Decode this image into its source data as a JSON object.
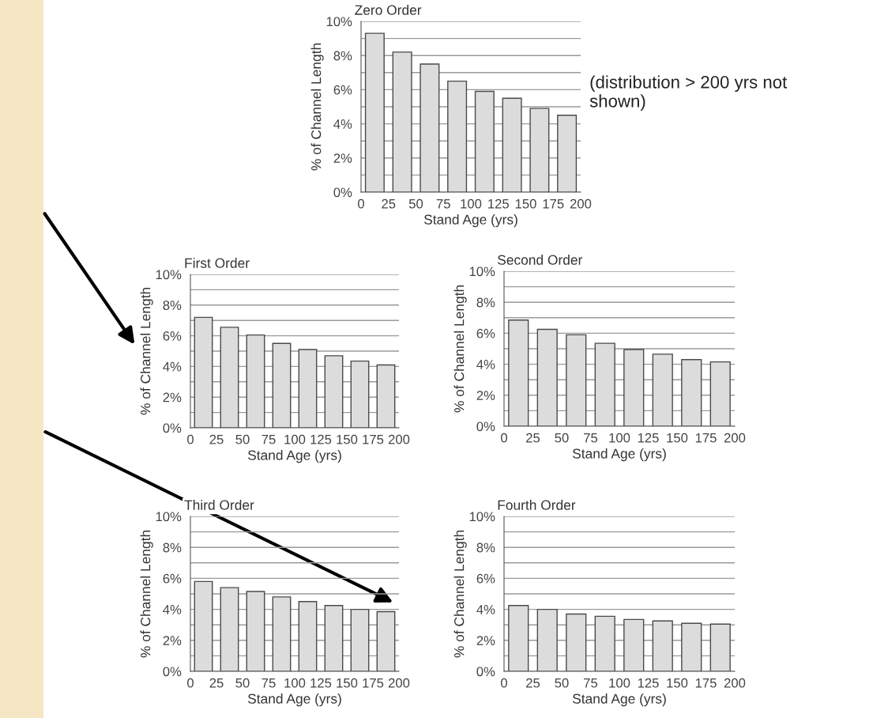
{
  "chart_data": [
    {
      "type": "bar",
      "title": "Zero Order",
      "xlabel": "Stand Age (yrs)",
      "ylabel": "% of Channel Length",
      "x": [
        12.5,
        37.5,
        62.5,
        87.5,
        112.5,
        137.5,
        162.5,
        187.5
      ],
      "values": [
        9.3,
        8.2,
        7.5,
        6.5,
        5.9,
        5.5,
        4.9,
        4.5
      ],
      "color": "#dcdcdc",
      "xlim": [
        0,
        200
      ],
      "xticks": [
        0,
        25,
        50,
        75,
        100,
        125,
        150,
        175,
        200
      ],
      "ylim": [
        0,
        10
      ],
      "yticks": [
        {
          "value": 0,
          "label": "0%"
        },
        {
          "value": 1,
          "label": null
        },
        {
          "value": 2,
          "label": "2%"
        },
        {
          "value": 3,
          "label": null
        },
        {
          "value": 4,
          "label": "4%"
        },
        {
          "value": 5,
          "label": null
        },
        {
          "value": 6,
          "label": "6%"
        },
        {
          "value": 7,
          "label": null
        },
        {
          "value": 8,
          "label": "8%"
        },
        {
          "value": 9,
          "label": null
        },
        {
          "value": 10,
          "label": "10%"
        }
      ],
      "grid": "y",
      "annotations": [
        "(distribution > 200 yrs not shown)"
      ]
    },
    {
      "type": "bar",
      "title": "First Order",
      "xlabel": "Stand Age (yrs)",
      "ylabel": "% of Channel Length",
      "x": [
        12.5,
        37.5,
        62.5,
        87.5,
        112.5,
        137.5,
        162.5,
        187.5
      ],
      "values": [
        7.2,
        6.55,
        6.05,
        5.5,
        5.1,
        4.7,
        4.35,
        4.1
      ],
      "color": "#dcdcdc",
      "xlim": [
        0,
        200
      ],
      "xticks": [
        0,
        25,
        50,
        75,
        100,
        125,
        150,
        175,
        200
      ],
      "ylim": [
        0,
        10
      ],
      "yticks": [
        {
          "value": 0,
          "label": "0%"
        },
        {
          "value": 1,
          "label": null
        },
        {
          "value": 2,
          "label": "2%"
        },
        {
          "value": 3,
          "label": null
        },
        {
          "value": 4,
          "label": "4%"
        },
        {
          "value": 5,
          "label": null
        },
        {
          "value": 6,
          "label": "6%"
        },
        {
          "value": 7,
          "label": null
        },
        {
          "value": 8,
          "label": "8%"
        },
        {
          "value": 9,
          "label": null
        },
        {
          "value": 10,
          "label": "10%"
        }
      ],
      "grid": "y"
    },
    {
      "type": "bar",
      "title": "Second Order",
      "xlabel": "Stand Age (yrs)",
      "ylabel": "% of Channel Length",
      "x": [
        12.5,
        37.5,
        62.5,
        87.5,
        112.5,
        137.5,
        162.5,
        187.5
      ],
      "values": [
        6.85,
        6.25,
        5.9,
        5.35,
        4.95,
        4.65,
        4.3,
        4.15
      ],
      "color": "#dcdcdc",
      "xlim": [
        0,
        200
      ],
      "xticks": [
        0,
        25,
        50,
        75,
        100,
        125,
        150,
        175,
        200
      ],
      "ylim": [
        0,
        10
      ],
      "yticks": [
        {
          "value": 0,
          "label": "0%"
        },
        {
          "value": 1,
          "label": null
        },
        {
          "value": 2,
          "label": "2%"
        },
        {
          "value": 3,
          "label": null
        },
        {
          "value": 4,
          "label": "4%"
        },
        {
          "value": 5,
          "label": null
        },
        {
          "value": 6,
          "label": "6%"
        },
        {
          "value": 7,
          "label": null
        },
        {
          "value": 8,
          "label": "8%"
        },
        {
          "value": 9,
          "label": null
        },
        {
          "value": 10,
          "label": "10%"
        }
      ],
      "grid": "y"
    },
    {
      "type": "bar",
      "title": "Third Order",
      "xlabel": "Stand Age (yrs)",
      "ylabel": "% of Channel Length",
      "x": [
        12.5,
        37.5,
        62.5,
        87.5,
        112.5,
        137.5,
        162.5,
        187.5
      ],
      "values": [
        5.8,
        5.4,
        5.15,
        4.8,
        4.5,
        4.25,
        4.0,
        3.85
      ],
      "color": "#dcdcdc",
      "xlim": [
        0,
        200
      ],
      "xticks": [
        0,
        25,
        50,
        75,
        100,
        125,
        150,
        175,
        200
      ],
      "ylim": [
        0,
        10
      ],
      "yticks": [
        {
          "value": 0,
          "label": "0%"
        },
        {
          "value": 1,
          "label": null
        },
        {
          "value": 2,
          "label": "2%"
        },
        {
          "value": 3,
          "label": null
        },
        {
          "value": 4,
          "label": "4%"
        },
        {
          "value": 5,
          "label": null
        },
        {
          "value": 6,
          "label": "6%"
        },
        {
          "value": 7,
          "label": null
        },
        {
          "value": 8,
          "label": "8%"
        },
        {
          "value": 9,
          "label": null
        },
        {
          "value": 10,
          "label": "10%"
        }
      ],
      "grid": "y"
    },
    {
      "type": "bar",
      "title": "Fourth Order",
      "xlabel": "Stand Age (yrs)",
      "ylabel": "% of Channel Length",
      "x": [
        12.5,
        37.5,
        62.5,
        87.5,
        112.5,
        137.5,
        162.5,
        187.5
      ],
      "values": [
        4.25,
        4.0,
        3.7,
        3.55,
        3.35,
        3.25,
        3.1,
        3.05
      ],
      "color": "#dcdcdc",
      "xlim": [
        0,
        200
      ],
      "xticks": [
        0,
        25,
        50,
        75,
        100,
        125,
        150,
        175,
        200
      ],
      "ylim": [
        0,
        10
      ],
      "yticks": [
        {
          "value": 0,
          "label": "0%"
        },
        {
          "value": 1,
          "label": null
        },
        {
          "value": 2,
          "label": "2%"
        },
        {
          "value": 3,
          "label": null
        },
        {
          "value": 4,
          "label": "4%"
        },
        {
          "value": 5,
          "label": null
        },
        {
          "value": 6,
          "label": "6%"
        },
        {
          "value": 7,
          "label": null
        },
        {
          "value": 8,
          "label": "8%"
        },
        {
          "value": 9,
          "label": null
        },
        {
          "value": 10,
          "label": "10%"
        }
      ],
      "grid": "y"
    }
  ]
}
